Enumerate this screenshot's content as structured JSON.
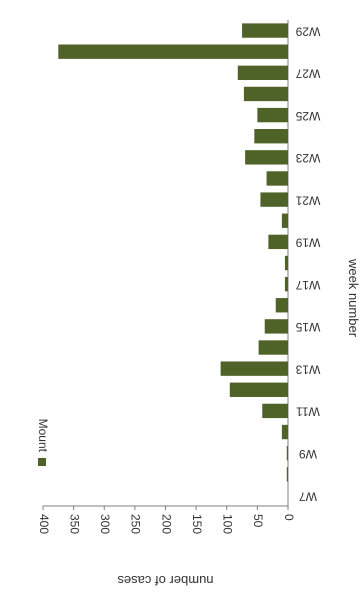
{
  "chart_data": {
    "type": "bar",
    "orientation": "rotated-180",
    "title": "",
    "xlabel": "week number",
    "ylabel": "number of cases",
    "ylim": [
      0,
      400
    ],
    "yticks": [
      0,
      50,
      100,
      150,
      200,
      250,
      300,
      350,
      400
    ],
    "categories": [
      "W7",
      "W8",
      "W9",
      "W10",
      "W11",
      "W12",
      "W13",
      "W14",
      "W15",
      "W16",
      "W17",
      "W18",
      "W19",
      "W20",
      "W21",
      "W22",
      "W23",
      "W24",
      "W25",
      "W26",
      "W27",
      "W28",
      "W29"
    ],
    "category_labels_shown": [
      "W7",
      "W9",
      "W11",
      "W13",
      "W15",
      "W17",
      "W19",
      "W21",
      "W23",
      "W25",
      "W27",
      "W29"
    ],
    "series": [
      {
        "name": "Mount",
        "color": "#4f6228",
        "values": [
          0,
          2,
          2,
          10,
          42,
          95,
          110,
          48,
          38,
          20,
          5,
          5,
          32,
          10,
          45,
          35,
          70,
          55,
          50,
          72,
          82,
          375,
          75
        ]
      }
    ],
    "grid": false,
    "legend": "top-left"
  }
}
